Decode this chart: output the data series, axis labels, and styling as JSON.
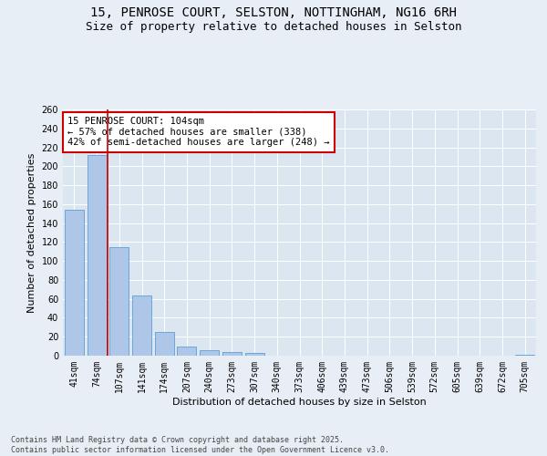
{
  "title_line1": "15, PENROSE COURT, SELSTON, NOTTINGHAM, NG16 6RH",
  "title_line2": "Size of property relative to detached houses in Selston",
  "xlabel": "Distribution of detached houses by size in Selston",
  "ylabel": "Number of detached properties",
  "categories": [
    "41sqm",
    "74sqm",
    "107sqm",
    "141sqm",
    "174sqm",
    "207sqm",
    "240sqm",
    "273sqm",
    "307sqm",
    "340sqm",
    "373sqm",
    "406sqm",
    "439sqm",
    "473sqm",
    "506sqm",
    "539sqm",
    "572sqm",
    "605sqm",
    "639sqm",
    "672sqm",
    "705sqm"
  ],
  "values": [
    154,
    212,
    115,
    64,
    25,
    10,
    6,
    4,
    3,
    0,
    0,
    0,
    0,
    0,
    0,
    0,
    0,
    0,
    0,
    0,
    1
  ],
  "bar_color": "#aec6e8",
  "bar_edge_color": "#5a9fd4",
  "vline_x": 1.5,
  "vline_color": "#cc0000",
  "annotation_text": "15 PENROSE COURT: 104sqm\n← 57% of detached houses are smaller (338)\n42% of semi-detached houses are larger (248) →",
  "annotation_box_color": "#ffffff",
  "annotation_box_edge_color": "#cc0000",
  "ylim": [
    0,
    260
  ],
  "yticks": [
    0,
    20,
    40,
    60,
    80,
    100,
    120,
    140,
    160,
    180,
    200,
    220,
    240,
    260
  ],
  "bg_color": "#e8eef5",
  "plot_bg_color": "#dce6f0",
  "grid_color": "#ffffff",
  "footer_text": "Contains HM Land Registry data © Crown copyright and database right 2025.\nContains public sector information licensed under the Open Government Licence v3.0.",
  "title_fontsize": 10,
  "subtitle_fontsize": 9,
  "label_fontsize": 8,
  "tick_fontsize": 7,
  "annotation_fontsize": 7.5,
  "footer_fontsize": 6
}
